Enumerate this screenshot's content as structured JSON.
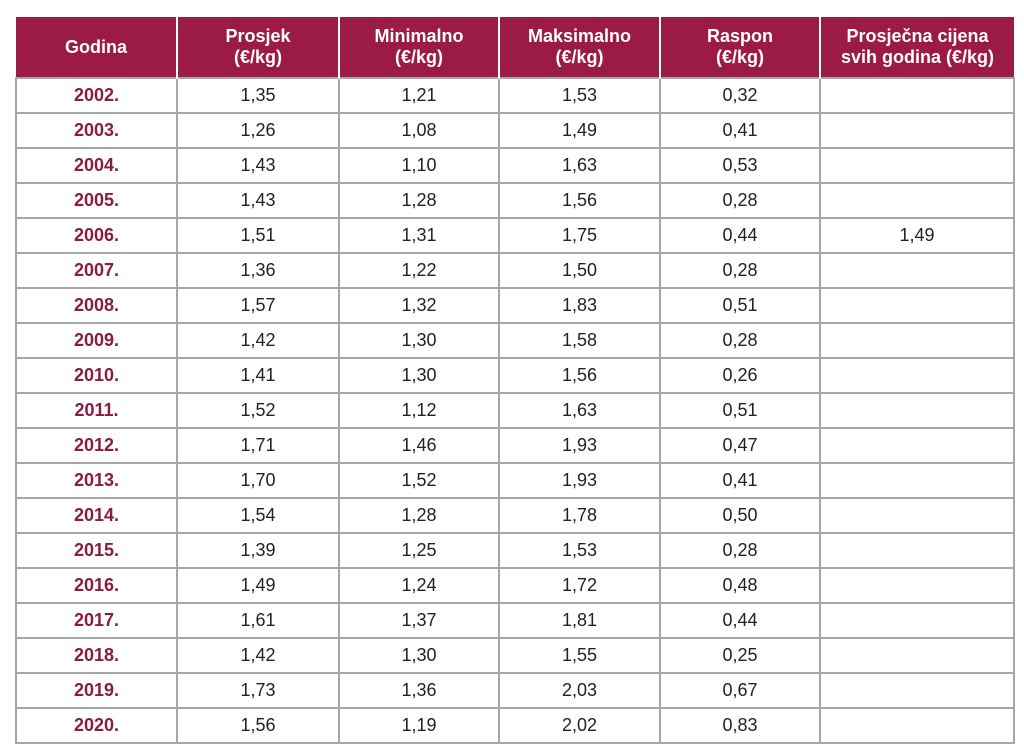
{
  "chart_data": {
    "type": "table",
    "columns": [
      [
        "Godina"
      ],
      [
        "Prosjek",
        "(€/kg)"
      ],
      [
        "Minimalno",
        "(€/kg)"
      ],
      [
        "Maksimalno",
        "(€/kg)"
      ],
      [
        "Raspon",
        "(€/kg)"
      ],
      [
        "Prosječna cijena",
        "svih godina (€/kg)"
      ]
    ],
    "rows": [
      [
        "2002.",
        "1,35",
        "1,21",
        "1,53",
        "0,32",
        ""
      ],
      [
        "2003.",
        "1,26",
        "1,08",
        "1,49",
        "0,41",
        ""
      ],
      [
        "2004.",
        "1,43",
        "1,10",
        "1,63",
        "0,53",
        ""
      ],
      [
        "2005.",
        "1,43",
        "1,28",
        "1,56",
        "0,28",
        ""
      ],
      [
        "2006.",
        "1,51",
        "1,31",
        "1,75",
        "0,44",
        "1,49"
      ],
      [
        "2007.",
        "1,36",
        "1,22",
        "1,50",
        "0,28",
        ""
      ],
      [
        "2008.",
        "1,57",
        "1,32",
        "1,83",
        "0,51",
        ""
      ],
      [
        "2009.",
        "1,42",
        "1,30",
        "1,58",
        "0,28",
        ""
      ],
      [
        "2010.",
        "1,41",
        "1,30",
        "1,56",
        "0,26",
        ""
      ],
      [
        "2011.",
        "1,52",
        "1,12",
        "1,63",
        "0,51",
        ""
      ],
      [
        "2012.",
        "1,71",
        "1,46",
        "1,93",
        "0,47",
        ""
      ],
      [
        "2013.",
        "1,70",
        "1,52",
        "1,93",
        "0,41",
        ""
      ],
      [
        "2014.",
        "1,54",
        "1,28",
        "1,78",
        "0,50",
        ""
      ],
      [
        "2015.",
        "1,39",
        "1,25",
        "1,53",
        "0,28",
        ""
      ],
      [
        "2016.",
        "1,49",
        "1,24",
        "1,72",
        "0,48",
        ""
      ],
      [
        "2017.",
        "1,61",
        "1,37",
        "1,81",
        "0,44",
        ""
      ],
      [
        "2018.",
        "1,42",
        "1,30",
        "1,55",
        "0,25",
        ""
      ],
      [
        "2019.",
        "1,73",
        "1,36",
        "2,03",
        "0,67",
        ""
      ],
      [
        "2020.",
        "1,56",
        "1,19",
        "2,02",
        "0,83",
        ""
      ]
    ],
    "header_color": "#9b1b45",
    "year_color": "#8a1c42",
    "grid_color": "#a6a6a6"
  }
}
